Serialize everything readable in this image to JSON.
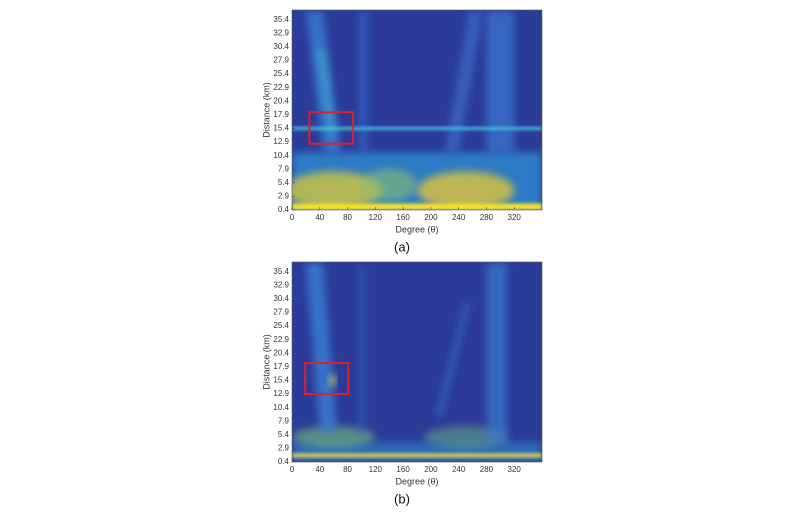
{
  "chart_data": [
    {
      "type": "heatmap",
      "xlabel": "Degree (θ)",
      "ylabel": "Distance (km)",
      "caption": "(a)",
      "xlim": [
        0,
        360
      ],
      "ylim": [
        0.4,
        37.2
      ],
      "xticks": [
        0,
        40,
        80,
        120,
        160,
        200,
        240,
        280,
        320
      ],
      "yticks": [
        0.4,
        2.9,
        5.4,
        7.9,
        10.4,
        12.9,
        15.4,
        17.9,
        20.4,
        22.9,
        25.4,
        27.9,
        30.4,
        32.9,
        35.4
      ],
      "box": {
        "x": [
          25,
          88
        ],
        "y": [
          12.6,
          18.4
        ],
        "color": "#e0202a"
      }
    },
    {
      "type": "heatmap",
      "xlabel": "Degree (θ)",
      "ylabel": "Distance (km)",
      "caption": "(b)",
      "xlim": [
        0,
        360
      ],
      "ylim": [
        0.4,
        37.2
      ],
      "xticks": [
        0,
        40,
        80,
        120,
        160,
        200,
        240,
        280,
        320
      ],
      "yticks": [
        0.4,
        2.9,
        5.4,
        7.9,
        10.4,
        12.9,
        15.4,
        17.9,
        20.4,
        22.9,
        25.4,
        27.9,
        30.4,
        32.9,
        35.4
      ],
      "box": {
        "x": [
          19,
          81
        ],
        "y": [
          12.9,
          18.6
        ],
        "color": "#e0202a"
      }
    }
  ]
}
